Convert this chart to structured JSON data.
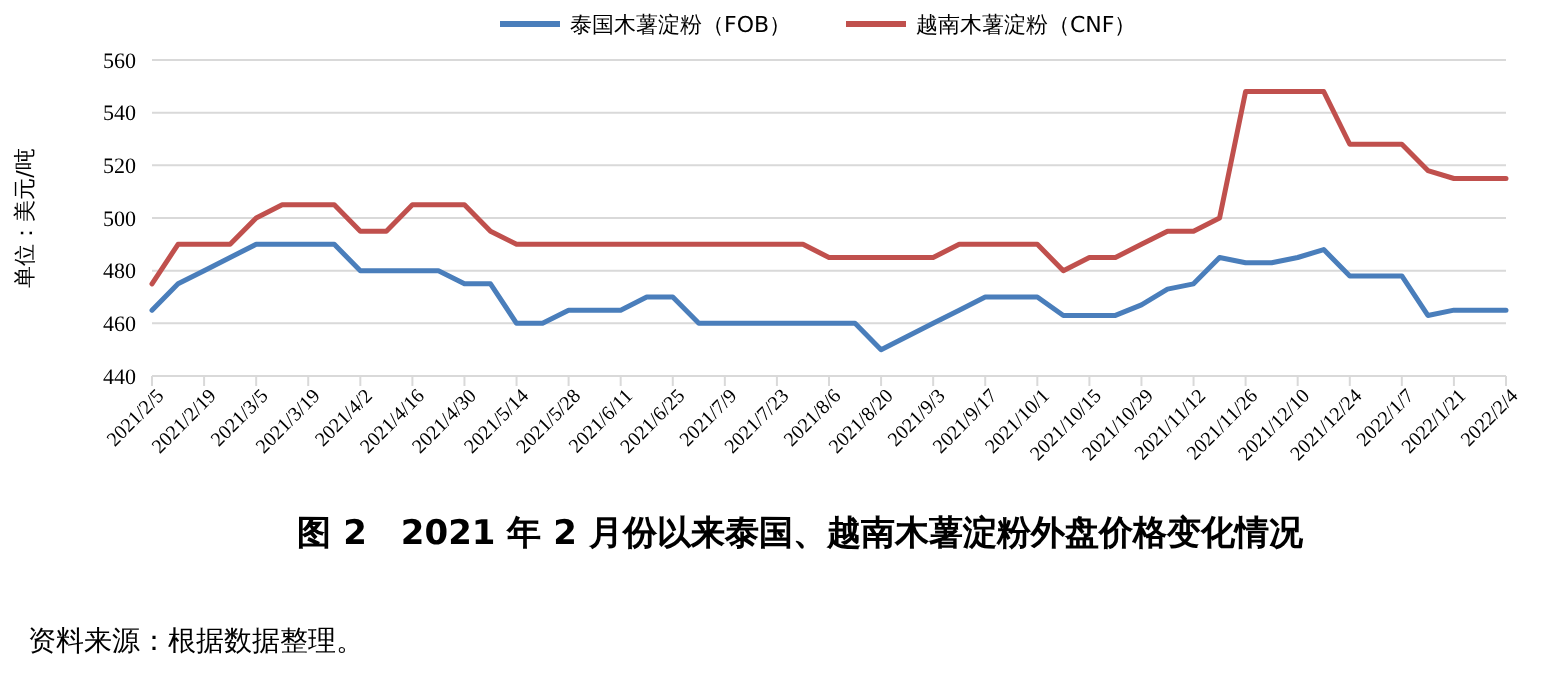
{
  "chart_data": {
    "type": "line",
    "title": "图 2　2021 年 2 月份以来泰国、越南木薯淀粉外盘价格变化情况",
    "ylabel": "单位：美元/吨",
    "annotations": [
      "资料来源：根据数据整理。"
    ],
    "categories": [
      "2021/2/5",
      null,
      "2021/2/19",
      null,
      "2021/3/5",
      null,
      "2021/3/19",
      null,
      "2021/4/2",
      null,
      "2021/4/16",
      null,
      "2021/4/30",
      null,
      "2021/5/14",
      null,
      "2021/5/28",
      null,
      "2021/6/11",
      null,
      "2021/6/25",
      null,
      "2021/7/9",
      null,
      "2021/7/23",
      null,
      "2021/8/6",
      null,
      "2021/8/20",
      null,
      "2021/9/3",
      null,
      "2021/9/17",
      null,
      "2021/10/1",
      null,
      "2021/10/15",
      null,
      "2021/10/29",
      null,
      "2021/11/12",
      null,
      "2021/11/26",
      null,
      "2021/12/10",
      null,
      "2021/12/24",
      null,
      "2022/1/7",
      null,
      "2022/1/21",
      null,
      "2022/2/4"
    ],
    "series": [
      {
        "name": "泰国木薯淀粉（FOB）",
        "color": "#4a7ebb",
        "values": [
          465,
          475,
          480,
          485,
          490,
          490,
          490,
          490,
          480,
          480,
          480,
          480,
          475,
          475,
          460,
          460,
          465,
          465,
          465,
          470,
          470,
          460,
          460,
          460,
          460,
          460,
          460,
          460,
          450,
          455,
          460,
          465,
          470,
          470,
          470,
          463,
          463,
          463,
          467,
          473,
          475,
          485,
          483,
          483,
          485,
          488,
          478,
          478,
          478,
          463,
          465,
          465,
          465
        ]
      },
      {
        "name": "越南木薯淀粉（CNF）",
        "color": "#c0504d",
        "values": [
          475,
          490,
          490,
          490,
          500,
          505,
          505,
          505,
          495,
          495,
          505,
          505,
          505,
          495,
          490,
          490,
          490,
          490,
          490,
          490,
          490,
          490,
          490,
          490,
          490,
          490,
          485,
          485,
          485,
          485,
          485,
          490,
          490,
          490,
          490,
          480,
          485,
          485,
          490,
          495,
          495,
          500,
          548,
          548,
          548,
          548,
          528,
          528,
          528,
          518,
          515,
          515,
          515
        ]
      }
    ],
    "ylim": [
      440,
      560
    ],
    "yticks": [
      440,
      460,
      480,
      500,
      520,
      540,
      560
    ],
    "grid": "y",
    "legend": "top",
    "line_style": "solid",
    "marker": "none"
  }
}
